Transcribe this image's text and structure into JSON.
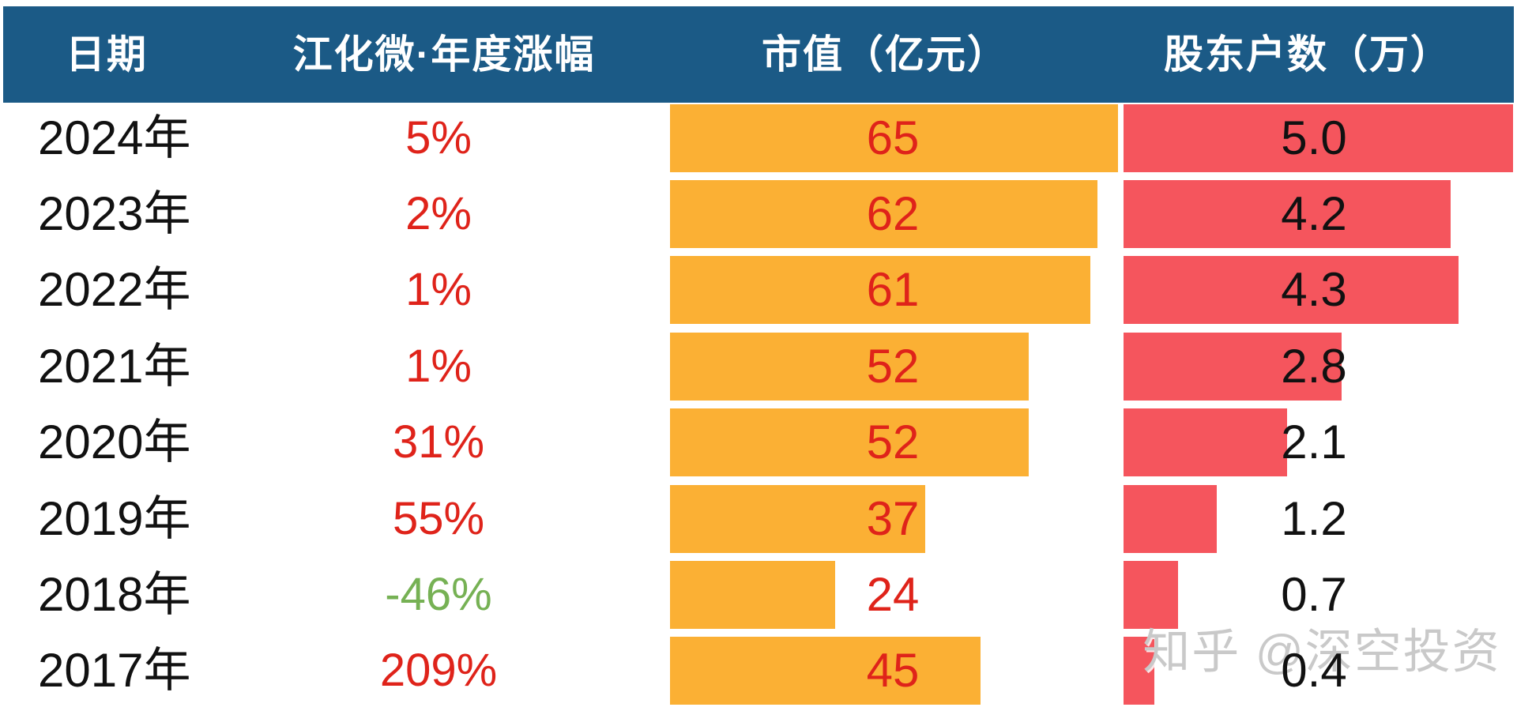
{
  "header": {
    "columns": [
      "日期",
      "江化微·年度涨幅",
      "市值（亿元）",
      "股东户数（万）"
    ]
  },
  "rows": [
    {
      "year": "2024年",
      "change": "5%",
      "market_cap": 65,
      "market_cap_label": "65",
      "holders": 5.0,
      "holders_label": "5.0"
    },
    {
      "year": "2023年",
      "change": "2%",
      "market_cap": 62,
      "market_cap_label": "62",
      "holders": 4.2,
      "holders_label": "4.2"
    },
    {
      "year": "2022年",
      "change": "1%",
      "market_cap": 61,
      "market_cap_label": "61",
      "holders": 4.3,
      "holders_label": "4.3"
    },
    {
      "year": "2021年",
      "change": "1%",
      "market_cap": 52,
      "market_cap_label": "52",
      "holders": 2.8,
      "holders_label": "2.8"
    },
    {
      "year": "2020年",
      "change": "31%",
      "market_cap": 52,
      "market_cap_label": "52",
      "holders": 2.1,
      "holders_label": "2.1"
    },
    {
      "year": "2019年",
      "change": "55%",
      "market_cap": 37,
      "market_cap_label": "37",
      "holders": 1.2,
      "holders_label": "1.2"
    },
    {
      "year": "2018年",
      "change": "-46%",
      "market_cap": 24,
      "market_cap_label": "24",
      "holders": 0.7,
      "holders_label": "0.7"
    },
    {
      "year": "2017年",
      "change": "209%",
      "market_cap": 45,
      "market_cap_label": "45",
      "holders": 0.4,
      "holders_label": "0.4"
    }
  ],
  "axes": {
    "market_cap_max": 65,
    "holders_max": 5.0
  },
  "colors": {
    "header_bg": "#1B5A86",
    "header_text": "#FFFFFF",
    "bar_orange": "#FBB034",
    "bar_red": "#F5555D",
    "text_red": "#DF231A",
    "text_green": "#76B154",
    "text_dark": "#111111",
    "watermark": "#C9C9C9"
  },
  "watermark": "知乎 @深空投资",
  "chart_data": {
    "type": "table",
    "title": "江化微·年度涨幅 / 市值（亿元） / 股东户数（万）",
    "categories": [
      "2024年",
      "2023年",
      "2022年",
      "2021年",
      "2020年",
      "2019年",
      "2018年",
      "2017年"
    ],
    "series": [
      {
        "name": "年度涨幅(%)",
        "values": [
          5,
          2,
          1,
          1,
          31,
          55,
          -46,
          209
        ]
      },
      {
        "name": "市值(亿元)",
        "values": [
          65,
          62,
          61,
          52,
          52,
          37,
          24,
          45
        ]
      },
      {
        "name": "股东户数(万)",
        "values": [
          5.0,
          4.2,
          4.3,
          2.8,
          2.1,
          1.2,
          0.7,
          0.4
        ]
      }
    ],
    "layout_hints": {
      "bars": "horizontal data bars, zero-based, scaled so column max fills bar area",
      "market_cap_bar_color": "#FBB034",
      "holders_bar_color": "#F5555D",
      "positive_change_color": "#DF231A",
      "negative_change_color": "#76B154",
      "grid": false,
      "legend": false
    }
  }
}
